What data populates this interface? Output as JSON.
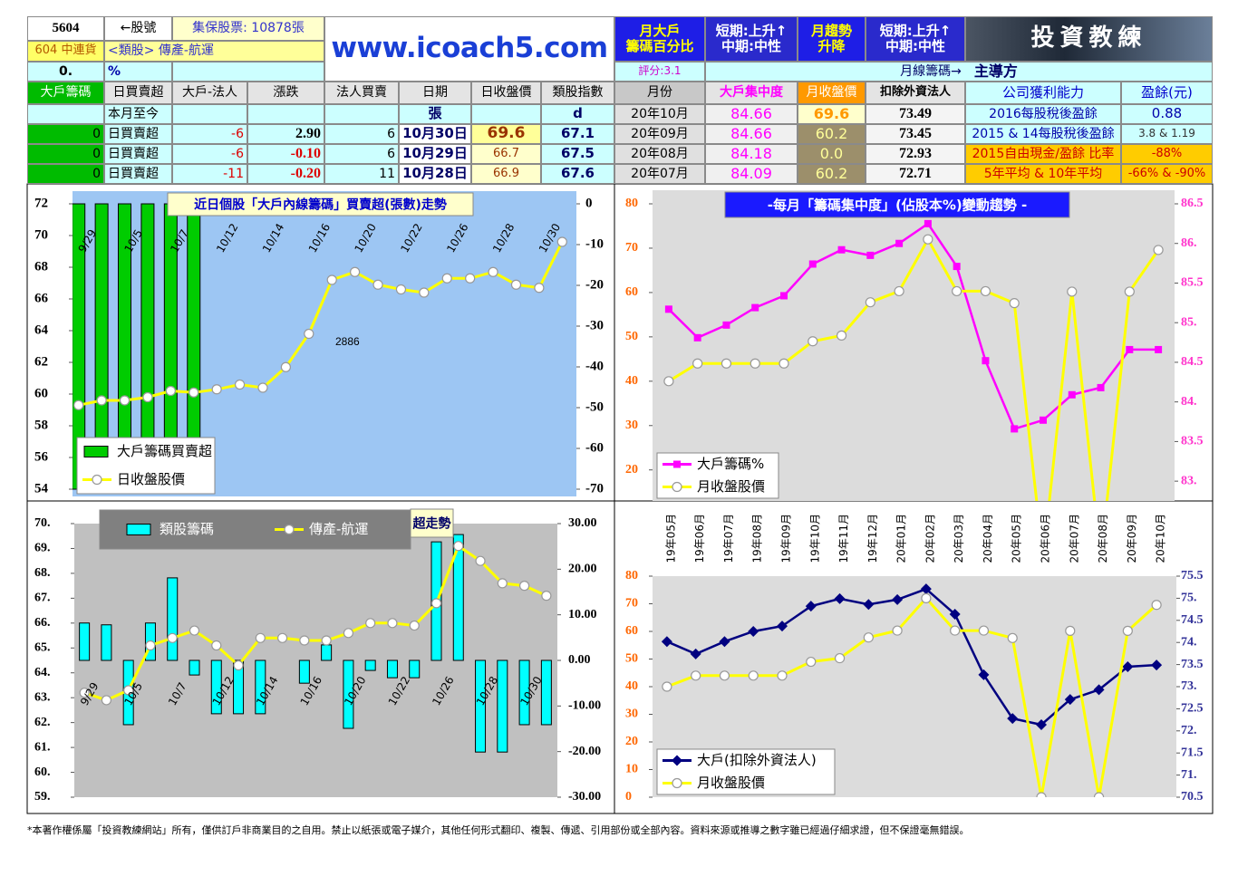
{
  "header": {
    "stock_code": "5604",
    "code_arrow": "←股號",
    "shares": "集保股票: 10878張",
    "name": "604 中連貨",
    "sector": "<類股> 傳產-航運",
    "pct": "0.",
    "pct_unit": "%",
    "site": "www.icoach5.com",
    "box1_title": [
      "月大戶",
      "籌碼百分比"
    ],
    "box1_value": [
      "短期:上升↑",
      "中期:中性"
    ],
    "box2_title": [
      "月趨勢",
      "升降"
    ],
    "box2_value": [
      "短期:上升↑",
      "中期:中性"
    ],
    "logo": "投資教練",
    "score": "評分:3.1",
    "main": "月線籌碼→",
    "main2": "主導方"
  },
  "table": {
    "headers": [
      "大戶籌碼",
      "日買賣超",
      "大戶-法人",
      "漲跌",
      "法人買賣",
      "日期",
      "日收盤價",
      "類股指數",
      "月份",
      "大戶集中度",
      "月收盤價",
      "扣除外資法人",
      "公司獲利能力",
      "盈餘(元)"
    ],
    "rows": [
      [
        null,
        "本月至今",
        null,
        null,
        null,
        "張",
        null,
        "d",
        "20年10月",
        "84.66",
        "69.6",
        "73.49",
        "2016每股稅後盈餘",
        "0.88"
      ],
      [
        "0",
        "日買賣超",
        "-6",
        "2.90",
        "6",
        "10月30日",
        "69.6",
        "67.1",
        "20年09月",
        "84.66",
        "60.2",
        "73.45",
        "2015 & 14每股稅後盈餘",
        "3.8 & 1.19"
      ],
      [
        "0",
        "日買賣超",
        "-6",
        "-0.10",
        "6",
        "10月29日",
        "66.7",
        "67.5",
        "20年08月",
        "84.18",
        "0.0",
        "72.93",
        "2015自由現金/盈餘 比率",
        "-88%"
      ],
      [
        "0",
        "日買賣超",
        "-11",
        "-0.20",
        "11",
        "10月28日",
        "66.9",
        "67.6",
        "20年07月",
        "84.09",
        "60.2",
        "72.71",
        "5年平均 & 10年平均",
        "-66% & -90%"
      ]
    ]
  },
  "chart_data": [
    {
      "type": "combo",
      "title": "近日個股「大戶內線籌碼」買賣超(張數)走勢",
      "annotation": "2886",
      "categories": [
        null,
        "9/29",
        null,
        "10/5",
        null,
        "10/7",
        null,
        "10/12",
        null,
        "10/14",
        null,
        "10/16",
        null,
        "10/20",
        null,
        "10/22",
        null,
        "10/26",
        null,
        "10/28",
        null,
        "10/30"
      ],
      "series": [
        {
          "name": "大戶籌碼買賣超",
          "kind": "bar",
          "axis": "y2",
          "color": "#00cc00",
          "values": [
            -70,
            -70,
            -70,
            -70,
            -70,
            -70,
            0,
            0,
            0,
            0,
            0,
            0,
            0,
            0,
            0,
            0,
            0,
            0,
            0,
            0,
            0,
            0
          ]
        },
        {
          "name": "日收盤股價",
          "kind": "line",
          "marker": "circle",
          "color": "#ffff00",
          "values": [
            59.3,
            59.6,
            59.6,
            59.8,
            60.2,
            60.1,
            60.3,
            60.6,
            60.4,
            61.7,
            63.8,
            67.2,
            67.7,
            66.9,
            66.6,
            66.4,
            67.3,
            67.3,
            67.7,
            66.9,
            66.7,
            69.6
          ]
        }
      ],
      "ylim": [
        54,
        72
      ],
      "yticks": [
        54,
        56,
        58,
        60,
        62,
        64,
        66,
        68,
        70,
        72
      ],
      "y2lim": [
        -70,
        0
      ],
      "y2ticks": [
        0,
        -10,
        -20,
        -30,
        -40,
        -50,
        -60,
        -70
      ],
      "grid": false,
      "legend": "lower left"
    },
    {
      "type": "line",
      "title": "-每月「籌碼集中度」(佔股本%)變動趨勢 -",
      "series": [
        {
          "name": "大戶籌碼%",
          "kind": "line",
          "marker": "square",
          "axis": "y2",
          "color": "#ff00ff",
          "values": [
            85.17,
            84.81,
            84.97,
            85.19,
            85.34,
            85.74,
            85.92,
            85.85,
            86.0,
            86.25,
            85.71,
            84.52,
            83.66,
            83.77,
            84.09,
            84.18,
            84.66,
            84.66
          ]
        },
        {
          "name": "月收盤股價",
          "kind": "line",
          "marker": "circle",
          "color": "#ffff00",
          "values": [
            40.0,
            44.0,
            44.0,
            44.0,
            44.0,
            49.0,
            50.3,
            57.8,
            60.3,
            72.0,
            60.3,
            60.3,
            57.6,
            0.0,
            60.2,
            0.0,
            60.2,
            69.6
          ]
        }
      ],
      "ylim": [
        13,
        80
      ],
      "yticks": [
        20,
        30,
        40,
        50,
        60,
        70,
        80
      ],
      "y2lim": [
        82.75,
        86.5
      ],
      "y2ticks": [
        {
          "value": 83,
          "label": "83."
        },
        83.5,
        {
          "value": 84,
          "label": "84."
        },
        84.5,
        {
          "value": 85,
          "label": "85."
        },
        85.5,
        {
          "value": 86,
          "label": "86."
        },
        86.5
      ],
      "grid": false,
      "legend": "lower left"
    },
    {
      "type": "combo",
      "title": "超走勢",
      "categories": [
        null,
        "9/29",
        null,
        "10/5",
        null,
        "10/7",
        null,
        "10/12",
        null,
        "10/14",
        null,
        "10/16",
        null,
        "10/20",
        null,
        "10/22",
        null,
        "10/26",
        null,
        "10/28",
        null,
        "10/30"
      ],
      "series": [
        {
          "name": "類股籌碼",
          "kind": "bar",
          "axis": "y2",
          "color": "#00ffff",
          "values": [
            8.2,
            7.8,
            -14.1,
            8.2,
            18.1,
            -3.2,
            -11.7,
            -11.7,
            -11.7,
            0,
            -5.0,
            3.4,
            -14.9,
            -2.2,
            -3.8,
            -3.8,
            26.0,
            27.6,
            -20.1,
            -20.1,
            -14.1,
            -14.1
          ]
        },
        {
          "name": "傳產-航運",
          "kind": "line",
          "marker": "circle",
          "color": "#ffff00",
          "values": [
            63.2,
            62.9,
            63.3,
            65.1,
            65.4,
            65.7,
            65.1,
            64.3,
            65.4,
            65.4,
            65.3,
            65.3,
            65.6,
            66.0,
            66.0,
            65.9,
            66.8,
            69.1,
            68.5,
            67.6,
            67.5,
            67.1
          ]
        }
      ],
      "ylim": [
        59,
        70
      ],
      "yticks": [
        {
          "value": 59,
          "label": "59."
        },
        {
          "value": 60,
          "label": "60."
        },
        {
          "value": 61,
          "label": "61."
        },
        {
          "value": 62,
          "label": "62."
        },
        {
          "value": 63,
          "label": "63."
        },
        {
          "value": 64,
          "label": "64."
        },
        {
          "value": 65,
          "label": "65."
        },
        {
          "value": 66,
          "label": "66."
        },
        {
          "value": 67,
          "label": "67."
        },
        {
          "value": 68,
          "label": "68."
        },
        {
          "value": 69,
          "label": "69."
        },
        {
          "value": 70,
          "label": "70."
        }
      ],
      "y2lim": [
        -30,
        30
      ],
      "y2ticks": [
        {
          "value": 30,
          "label": "30.00"
        },
        {
          "value": 20,
          "label": "20.00"
        },
        {
          "value": 10,
          "label": "10.00"
        },
        {
          "value": 0,
          "label": "0.00"
        },
        {
          "value": -10,
          "label": "-10.00"
        },
        {
          "value": -20,
          "label": "-20.00"
        },
        {
          "value": -30,
          "label": "-30.00"
        }
      ],
      "grid": false,
      "legend": "upper left"
    },
    {
      "type": "line",
      "categories": [
        "19年05月",
        "19年06月",
        "19年07月",
        "19年08月",
        "19年09月",
        "19年10月",
        "19年11月",
        "19年12月",
        "20年01月",
        "20年02月",
        "20年03月",
        "20年04月",
        "20年05月",
        "20年06月",
        "20年07月",
        "20年08月",
        "20年09月",
        "20年10月"
      ],
      "series": [
        {
          "name": "大戶(扣除外資法人)",
          "kind": "line",
          "marker": "diamond",
          "axis": "y2",
          "color": "#000080",
          "values": [
            74.02,
            73.74,
            74.02,
            74.25,
            74.37,
            74.82,
            74.99,
            74.86,
            74.97,
            75.21,
            74.64,
            73.27,
            72.28,
            72.14,
            72.71,
            72.93,
            73.45,
            73.49
          ]
        },
        {
          "name": "月收盤股價",
          "kind": "line",
          "marker": "circle",
          "color": "#ffff00",
          "values": [
            40.0,
            44.0,
            44.0,
            44.0,
            44.0,
            49.0,
            50.3,
            57.8,
            60.3,
            72.0,
            60.3,
            60.3,
            57.6,
            0.0,
            60.2,
            0.0,
            60.2,
            69.6
          ]
        }
      ],
      "ylim": [
        0,
        80
      ],
      "yticks": [
        0,
        10,
        20,
        30,
        40,
        50,
        60,
        70,
        80
      ],
      "y2lim": [
        70.5,
        75.5
      ],
      "y2ticks": [
        70.5,
        {
          "value": 71,
          "label": "71."
        },
        71.5,
        {
          "value": 72,
          "label": "72."
        },
        72.5,
        {
          "value": 73,
          "label": "73."
        },
        73.5,
        {
          "value": 74,
          "label": "74."
        },
        74.5,
        {
          "value": 75,
          "label": "75."
        },
        75.5
      ],
      "grid": false,
      "legend": "lower left"
    }
  ],
  "footer": "*本著作權係屬「投資教練網站」所有，僅供訂戶非商業目的之自用。禁止以紙張或電子媒介，其他任何形式翻印、複製、傳遞、引用部份或全部內容。資料來源或推導之數字雖已經過仔細求證，但不保證毫無錯誤。"
}
